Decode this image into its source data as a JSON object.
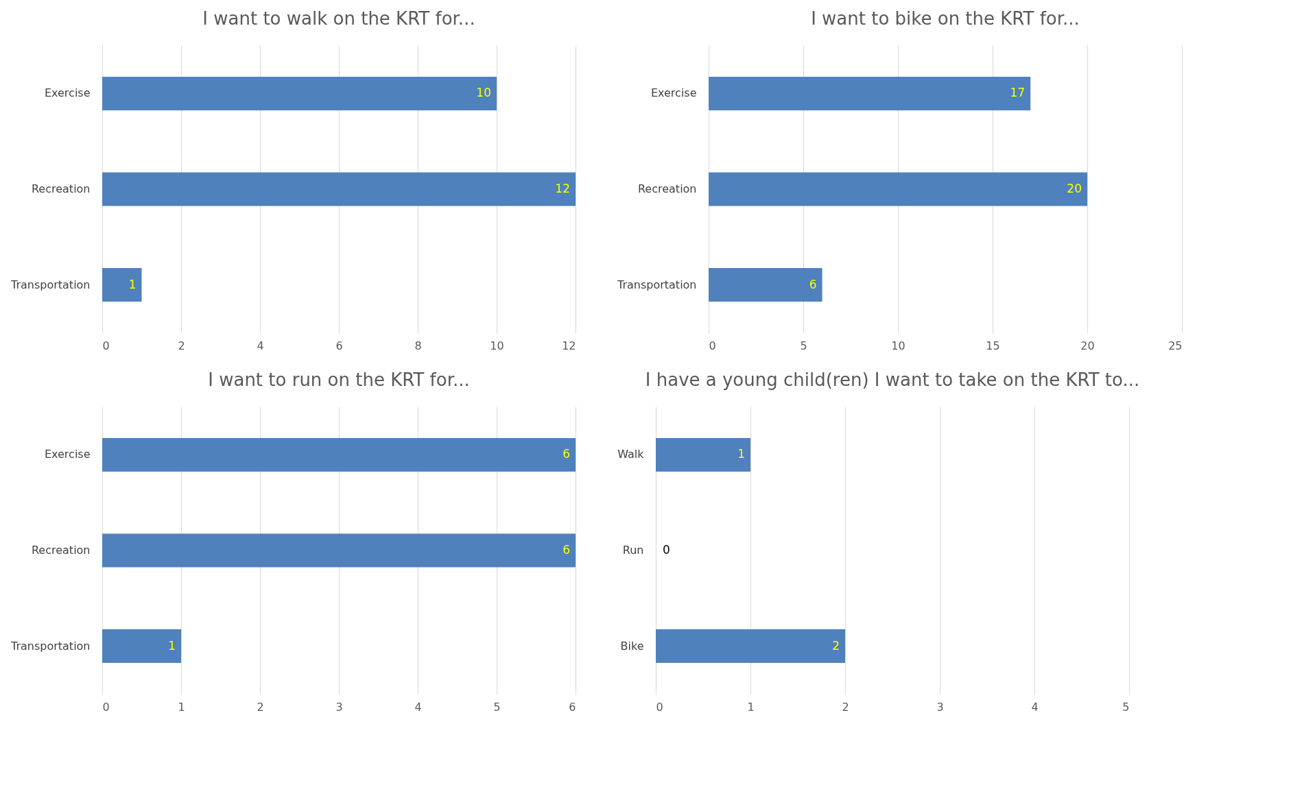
{
  "chart_data": [
    {
      "type": "bar",
      "orientation": "horizontal",
      "title": "I want to walk on the KRT for...",
      "categories": [
        "Exercise",
        "Recreation",
        "Transportation"
      ],
      "values": [
        10,
        12,
        1
      ],
      "color": "#4f81bd",
      "xlim": [
        0,
        12
      ],
      "xticks": [
        0,
        2,
        4,
        6,
        8,
        10,
        12
      ],
      "grid": "x",
      "data_labels": true
    },
    {
      "type": "bar",
      "orientation": "horizontal",
      "title": "I want to bike on the KRT for...",
      "categories": [
        "Exercise",
        "Recreation",
        "Transportation"
      ],
      "values": [
        17,
        20,
        6
      ],
      "color": "#4f81bd",
      "xlim": [
        0,
        25
      ],
      "xticks": [
        0,
        5,
        10,
        15,
        20,
        25
      ],
      "grid": "x",
      "data_labels": true
    },
    {
      "type": "bar",
      "orientation": "horizontal",
      "title": "I want to run on the KRT for...",
      "categories": [
        "Exercise",
        "Recreation",
        "Transportation"
      ],
      "values": [
        6,
        6,
        1
      ],
      "color": "#4f81bd",
      "xlim": [
        0,
        6
      ],
      "xticks": [
        0,
        1,
        2,
        3,
        4,
        5,
        6
      ],
      "grid": "x",
      "data_labels": true
    },
    {
      "type": "bar",
      "orientation": "horizontal",
      "title": "I have a young child(ren) I want to take on the KRT to...",
      "categories": [
        "Walk",
        "Run",
        "Bike"
      ],
      "values": [
        1,
        0,
        2
      ],
      "color": "#4f81bd",
      "xlim": [
        0,
        5
      ],
      "xticks": [
        0,
        1,
        2,
        3,
        4,
        5
      ],
      "grid": "x",
      "data_labels": true
    }
  ]
}
